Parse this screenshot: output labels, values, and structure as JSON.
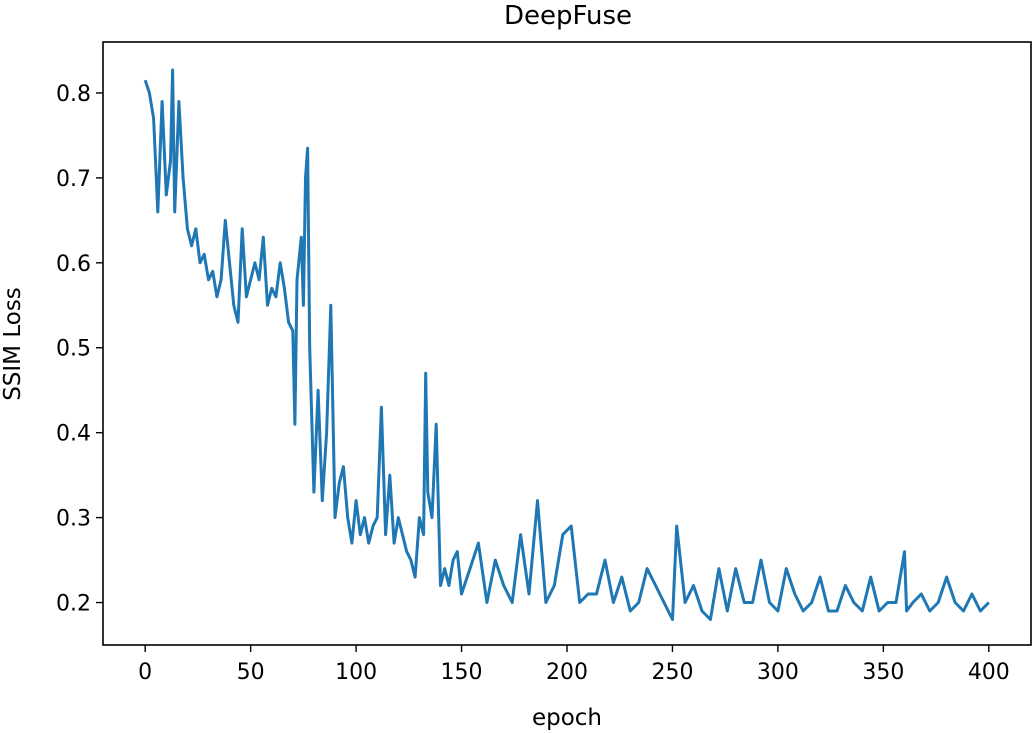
{
  "chart_data": {
    "type": "line",
    "title": "DeepFuse",
    "xlabel": "epoch",
    "ylabel": "SSIM Loss",
    "xlim": [
      -20,
      420
    ],
    "ylim": [
      0.15,
      0.86
    ],
    "xticks": [
      0,
      50,
      100,
      150,
      200,
      250,
      300,
      350,
      400
    ],
    "yticks": [
      0.2,
      0.3,
      0.4,
      0.5,
      0.6,
      0.7,
      0.8
    ],
    "ytick_labels": [
      "0.2",
      "0.3",
      "0.4",
      "0.5",
      "0.6",
      "0.7",
      "0.8"
    ],
    "grid": false,
    "line_color": "#1f77b4",
    "series": [
      {
        "name": "SSIM Loss",
        "x": [
          0,
          2,
          4,
          6,
          8,
          10,
          12,
          13,
          14,
          16,
          18,
          20,
          22,
          24,
          26,
          28,
          30,
          32,
          34,
          36,
          38,
          40,
          42,
          44,
          46,
          48,
          50,
          52,
          54,
          56,
          58,
          60,
          62,
          64,
          66,
          68,
          70,
          71,
          72,
          74,
          75,
          76,
          77,
          78,
          80,
          82,
          84,
          86,
          88,
          90,
          92,
          94,
          96,
          98,
          100,
          102,
          104,
          106,
          108,
          110,
          112,
          114,
          116,
          118,
          120,
          122,
          124,
          126,
          128,
          130,
          132,
          133,
          134,
          136,
          138,
          140,
          142,
          144,
          146,
          148,
          150,
          154,
          158,
          162,
          166,
          170,
          174,
          178,
          182,
          186,
          190,
          194,
          198,
          202,
          206,
          210,
          214,
          218,
          222,
          226,
          230,
          234,
          238,
          242,
          246,
          250,
          252,
          256,
          260,
          264,
          268,
          272,
          276,
          280,
          284,
          288,
          292,
          296,
          300,
          304,
          308,
          312,
          316,
          320,
          324,
          328,
          332,
          336,
          340,
          344,
          348,
          352,
          356,
          360,
          361,
          364,
          368,
          372,
          376,
          380,
          384,
          388,
          392,
          396,
          400
        ],
        "y": [
          0.815,
          0.8,
          0.77,
          0.66,
          0.79,
          0.68,
          0.72,
          0.827,
          0.66,
          0.79,
          0.7,
          0.64,
          0.62,
          0.64,
          0.6,
          0.61,
          0.58,
          0.59,
          0.56,
          0.58,
          0.65,
          0.6,
          0.55,
          0.53,
          0.64,
          0.56,
          0.58,
          0.6,
          0.58,
          0.63,
          0.55,
          0.57,
          0.56,
          0.6,
          0.57,
          0.53,
          0.52,
          0.41,
          0.58,
          0.63,
          0.55,
          0.7,
          0.735,
          0.5,
          0.33,
          0.45,
          0.32,
          0.4,
          0.55,
          0.3,
          0.34,
          0.36,
          0.3,
          0.27,
          0.32,
          0.28,
          0.3,
          0.27,
          0.29,
          0.3,
          0.43,
          0.28,
          0.35,
          0.27,
          0.3,
          0.28,
          0.26,
          0.25,
          0.23,
          0.3,
          0.28,
          0.47,
          0.33,
          0.3,
          0.41,
          0.22,
          0.24,
          0.22,
          0.25,
          0.26,
          0.21,
          0.24,
          0.27,
          0.2,
          0.25,
          0.22,
          0.2,
          0.28,
          0.21,
          0.32,
          0.2,
          0.22,
          0.28,
          0.29,
          0.2,
          0.21,
          0.21,
          0.25,
          0.2,
          0.23,
          0.19,
          0.2,
          0.24,
          0.22,
          0.2,
          0.18,
          0.29,
          0.2,
          0.22,
          0.19,
          0.18,
          0.24,
          0.19,
          0.24,
          0.2,
          0.2,
          0.25,
          0.2,
          0.19,
          0.24,
          0.21,
          0.19,
          0.2,
          0.23,
          0.19,
          0.19,
          0.22,
          0.2,
          0.19,
          0.23,
          0.19,
          0.2,
          0.2,
          0.26,
          0.19,
          0.2,
          0.21,
          0.19,
          0.2,
          0.23,
          0.2,
          0.19,
          0.21,
          0.19,
          0.2
        ]
      }
    ]
  }
}
